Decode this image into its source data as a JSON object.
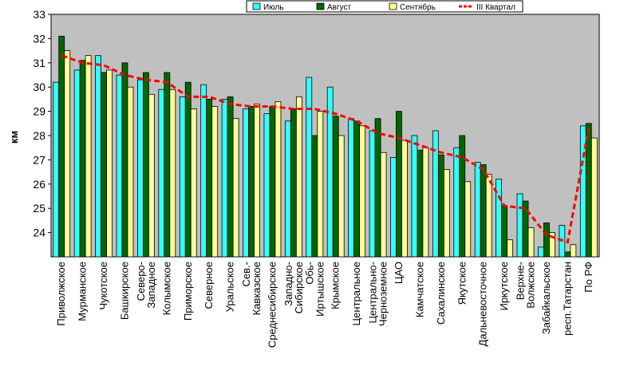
{
  "chart_data": {
    "type": "bar",
    "title": "",
    "xlabel": "",
    "ylabel": "км",
    "ylim": [
      23,
      33
    ],
    "yticks": [
      24,
      25,
      26,
      27,
      28,
      29,
      30,
      31,
      32,
      33
    ],
    "grid": false,
    "legend_position": "top-right",
    "plot_background": "#c0c0c0",
    "categories": [
      "Приволжское",
      "Мурманское",
      "Чукотское",
      "Башкирское",
      "Северо-Западное",
      "Колымское",
      "Приморское",
      "Северное",
      "Уральское",
      "Сев.-Кавказское",
      "Среднесибирское",
      "Западно-Сибирское",
      "Обь-Иртышское",
      "Крымское",
      "Центральное",
      "Центрально-Черноземное",
      "ЦАО",
      "Камчатское",
      "Сахалинское",
      "Якутское",
      "Дальневосточное",
      "Иркутское",
      "Верхне-Волжское",
      "Забайкальское",
      "респ.Татарстан",
      "По РФ"
    ],
    "category_label_lines": [
      [
        "Приволжское"
      ],
      [
        "Мурманское"
      ],
      [
        "Чукотское"
      ],
      [
        "Башкирское"
      ],
      [
        "Северо-",
        "Западное"
      ],
      [
        "Колымское"
      ],
      [
        "Приморское"
      ],
      [
        "Северное"
      ],
      [
        "Уральское"
      ],
      [
        "Сев.-",
        "Кавказское"
      ],
      [
        "Среднесибирское"
      ],
      [
        "Западно-",
        "Сибирское"
      ],
      [
        "Обь-",
        "Иртышское"
      ],
      [
        "Крымское"
      ],
      [
        "Центральное"
      ],
      [
        "Центрально-",
        "Черноземное"
      ],
      [
        "ЦАО"
      ],
      [
        "Камчатское"
      ],
      [
        "Сахалинское"
      ],
      [
        "Якутское"
      ],
      [
        "Дальневосточное"
      ],
      [
        "Иркутское"
      ],
      [
        "Верхне-",
        "Волжское"
      ],
      [
        "Забайкальское"
      ],
      [
        "респ.Татарстан"
      ],
      [
        "По РФ"
      ]
    ],
    "series": [
      {
        "name": "Июль",
        "kind": "bar",
        "color": "#33ffff",
        "values": [
          30.2,
          30.7,
          31.3,
          30.5,
          30.3,
          29.9,
          29.6,
          30.1,
          29.5,
          29.1,
          28.9,
          28.6,
          30.4,
          30.0,
          28.7,
          28.2,
          27.1,
          28.0,
          28.2,
          27.5,
          26.9,
          26.2,
          25.6,
          23.4,
          24.3,
          28.4
        ]
      },
      {
        "name": "Август",
        "kind": "bar",
        "color": "#006600",
        "values": [
          32.1,
          31.1,
          30.6,
          31.0,
          30.6,
          30.6,
          30.2,
          29.5,
          29.6,
          29.2,
          29.2,
          29.1,
          28.0,
          28.8,
          28.6,
          28.7,
          29.0,
          27.4,
          27.2,
          28.0,
          26.8,
          25.1,
          25.3,
          24.4,
          23.2,
          28.5
        ]
      },
      {
        "name": "Сентябрь",
        "kind": "bar",
        "color": "#ffff99",
        "values": [
          31.5,
          31.3,
          30.7,
          30.0,
          29.7,
          29.9,
          29.1,
          29.2,
          28.7,
          29.3,
          29.4,
          29.6,
          29.0,
          28.0,
          28.4,
          27.3,
          27.8,
          27.5,
          26.6,
          26.1,
          26.4,
          23.7,
          24.2,
          24.0,
          23.5,
          27.9
        ]
      },
      {
        "name": "III Квартал",
        "kind": "line",
        "color": "#ff0000",
        "style": "dashed",
        "values": [
          31.3,
          31.0,
          30.9,
          30.5,
          30.3,
          30.2,
          29.6,
          29.6,
          29.3,
          29.2,
          29.2,
          29.1,
          29.1,
          28.9,
          28.6,
          28.1,
          27.9,
          27.6,
          27.3,
          27.1,
          26.6,
          25.1,
          25.0,
          23.9,
          23.6,
          28.3
        ]
      }
    ]
  }
}
